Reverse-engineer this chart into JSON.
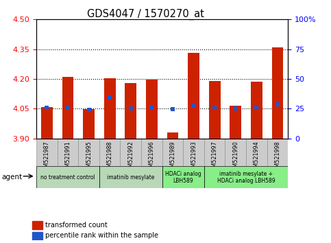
{
  "title": "GDS4047 / 1570270_at",
  "samples": [
    "GSM521987",
    "GSM521991",
    "GSM521995",
    "GSM521988",
    "GSM521992",
    "GSM521996",
    "GSM521989",
    "GSM521993",
    "GSM521997",
    "GSM521990",
    "GSM521994",
    "GSM521998"
  ],
  "bar_bottoms": [
    3.9,
    3.9,
    3.9,
    3.9,
    3.9,
    3.9,
    3.9,
    3.9,
    3.9,
    3.9,
    3.9,
    3.9
  ],
  "bar_tops": [
    4.06,
    4.21,
    4.047,
    4.205,
    4.18,
    4.195,
    3.93,
    4.33,
    4.19,
    4.065,
    4.185,
    4.36
  ],
  "percentile_vals": [
    4.056,
    4.057,
    4.045,
    4.108,
    4.052,
    4.057,
    4.047,
    4.067,
    4.059,
    4.051,
    4.057,
    4.072
  ],
  "ylim_left": [
    3.9,
    4.5
  ],
  "yticks_left": [
    3.9,
    4.05,
    4.2,
    4.35,
    4.5
  ],
  "ylim_right": [
    0,
    100
  ],
  "yticks_right": [
    0,
    25,
    50,
    75,
    100
  ],
  "ytick_labels_right": [
    "0",
    "25",
    "50",
    "75",
    "100%"
  ],
  "bar_color": "#cc2200",
  "percentile_color": "#2255cc",
  "agent_groups": [
    {
      "label": "no treatment control",
      "span": [
        0,
        3
      ],
      "color": "#b8d8b8"
    },
    {
      "label": "imatinib mesylate",
      "span": [
        3,
        6
      ],
      "color": "#b8d8b8"
    },
    {
      "label": "HDACi analog\nLBH589",
      "span": [
        6,
        8
      ],
      "color": "#88ee88"
    },
    {
      "label": "imatinib mesylate +\nHDACi analog LBH589",
      "span": [
        8,
        12
      ],
      "color": "#88ee88"
    }
  ],
  "agent_label": "agent",
  "title_fontsize": 11,
  "bar_width": 0.55
}
